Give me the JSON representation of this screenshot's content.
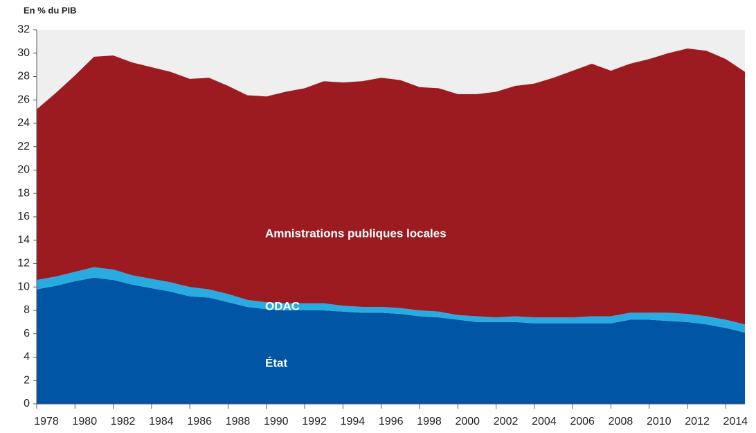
{
  "chart_data": {
    "type": "stacked_area",
    "y_label": "En % du PIB",
    "x": [
      1978,
      1979,
      1980,
      1981,
      1982,
      1983,
      1984,
      1985,
      1986,
      1987,
      1988,
      1989,
      1990,
      1991,
      1992,
      1993,
      1994,
      1995,
      1996,
      1997,
      1998,
      1999,
      2000,
      2001,
      2002,
      2003,
      2004,
      2005,
      2006,
      2007,
      2008,
      2009,
      2010,
      2011,
      2012,
      2013,
      2014,
      2015
    ],
    "xlim": [
      1978,
      2015
    ],
    "xticks": [
      1978,
      1980,
      1982,
      1984,
      1986,
      1988,
      1990,
      1992,
      1994,
      1996,
      1998,
      2000,
      2002,
      2004,
      2006,
      2008,
      2010,
      2012,
      2014
    ],
    "ylim": [
      0,
      32
    ],
    "yticks": [
      0,
      2,
      4,
      6,
      8,
      10,
      12,
      14,
      16,
      18,
      20,
      22,
      24,
      26,
      28,
      30,
      32
    ],
    "series": [
      {
        "name": "État",
        "color": "#0055a4",
        "values": [
          9.8,
          10.1,
          10.5,
          10.8,
          10.6,
          10.2,
          9.9,
          9.6,
          9.2,
          9.1,
          8.7,
          8.3,
          8.1,
          8.0,
          8.0,
          8.0,
          7.9,
          7.8,
          7.8,
          7.7,
          7.5,
          7.4,
          7.2,
          7.0,
          7.0,
          7.0,
          6.9,
          6.9,
          6.9,
          6.9,
          6.9,
          7.2,
          7.2,
          7.1,
          7.0,
          6.8,
          6.5,
          6.1
        ]
      },
      {
        "name": "ODAC",
        "color": "#29abe2",
        "values": [
          0.8,
          0.8,
          0.8,
          0.9,
          0.9,
          0.8,
          0.8,
          0.8,
          0.8,
          0.7,
          0.7,
          0.6,
          0.6,
          0.6,
          0.6,
          0.6,
          0.5,
          0.5,
          0.5,
          0.5,
          0.5,
          0.5,
          0.4,
          0.5,
          0.4,
          0.5,
          0.5,
          0.5,
          0.5,
          0.6,
          0.6,
          0.6,
          0.6,
          0.7,
          0.7,
          0.7,
          0.7,
          0.7
        ]
      },
      {
        "name": "Amnistrations publiques locales",
        "color": "#9b1b20",
        "values": [
          14.6,
          15.7,
          16.8,
          18.0,
          18.3,
          18.2,
          18.1,
          18.0,
          17.8,
          18.1,
          17.8,
          17.5,
          17.6,
          18.1,
          18.4,
          19.0,
          19.1,
          19.3,
          19.6,
          19.5,
          19.1,
          19.1,
          18.9,
          19.0,
          19.3,
          19.7,
          20.0,
          20.5,
          21.1,
          21.6,
          21.0,
          21.3,
          21.7,
          22.2,
          22.7,
          22.7,
          22.3,
          21.6
        ]
      }
    ]
  }
}
